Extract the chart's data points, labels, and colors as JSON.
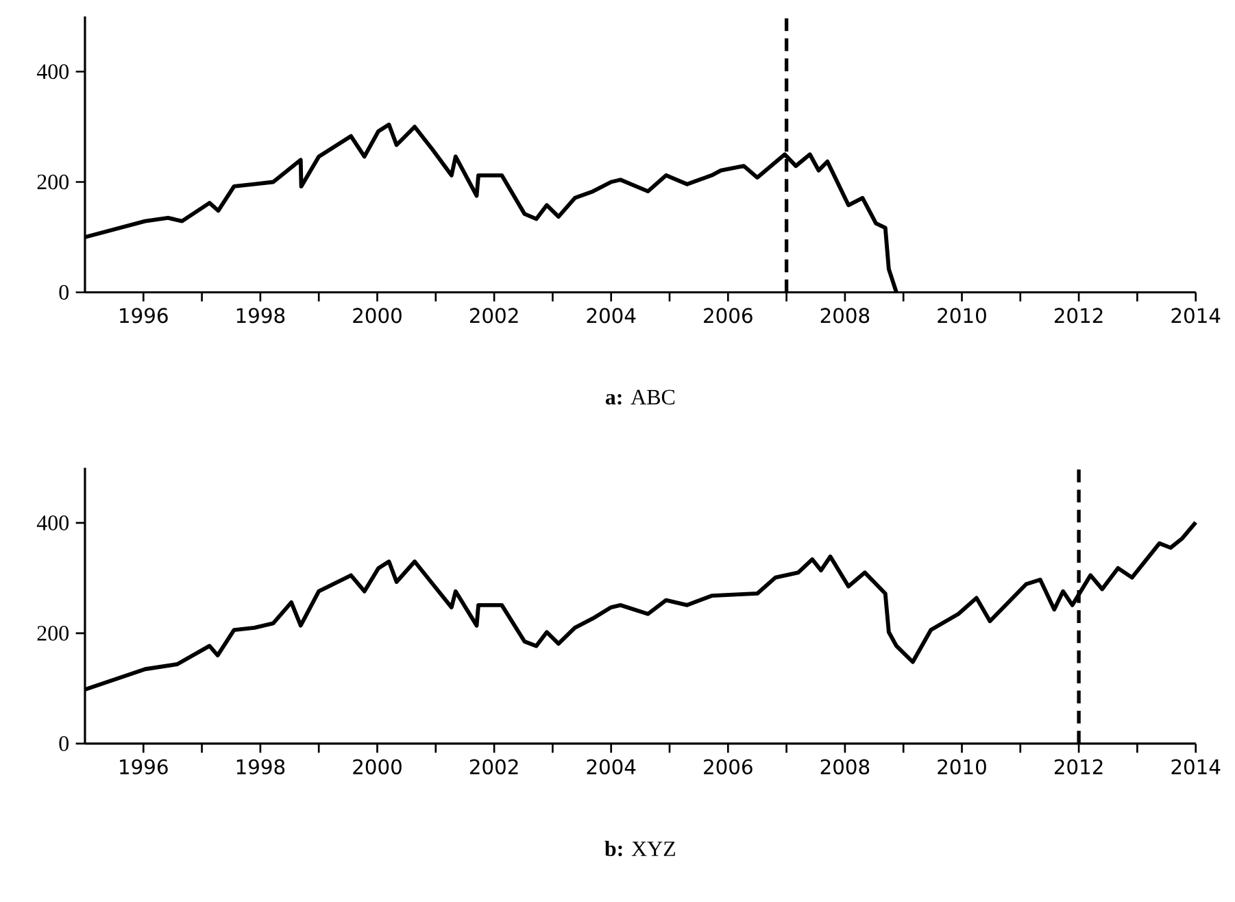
{
  "chart_data": [
    {
      "type": "line",
      "title": "**a:** ABC",
      "color": "#000000",
      "x": [
        1995,
        1996.03,
        1996.42,
        1996.66,
        1997.13,
        1997.28,
        1997.55,
        1997.9,
        1998.22,
        1998.69,
        1998.7,
        1999,
        1999.55,
        1999.78,
        2000.02,
        2000.2,
        2000.33,
        2000.64,
        2000.95,
        2001.27,
        2001.34,
        2001.7,
        2001.73,
        2002.13,
        2002.52,
        2002.72,
        2002.9,
        2003.1,
        2003.38,
        2003.69,
        2004,
        2004.16,
        2004.63,
        2004.94,
        2005.3,
        2005.72,
        2005.88,
        2006.27,
        2006.5,
        2006.97,
        2007.16,
        2007.4,
        2007.55,
        2007.7,
        2008.06,
        2008.3,
        2008.53,
        2008.69,
        2008.75,
        2008.88
      ],
      "values": [
        100,
        129,
        135,
        129,
        162,
        148,
        192,
        196,
        200,
        240,
        192,
        246,
        283,
        246,
        292,
        304,
        267,
        300,
        258,
        212,
        246,
        175,
        212,
        212,
        142,
        133,
        158,
        137,
        171,
        183,
        200,
        204,
        183,
        212,
        196,
        212,
        221,
        229,
        208,
        250,
        229,
        250,
        221,
        237,
        158,
        171,
        125,
        117,
        42,
        0
      ],
      "xlim": [
        1995,
        2014
      ],
      "ylim": [
        0,
        500
      ],
      "yticks": [
        0,
        200,
        400
      ],
      "xticks": [
        1996,
        {
          "value": 1997,
          "label": null
        },
        1998,
        {
          "value": 1999,
          "label": null
        },
        2000,
        {
          "value": 2001,
          "label": null
        },
        2002,
        {
          "value": 2003,
          "label": null
        },
        2004,
        {
          "value": 2005,
          "label": null
        },
        2006,
        {
          "value": 2007,
          "label": null
        },
        2008,
        {
          "value": 2009,
          "label": null
        },
        2010,
        {
          "value": 2011,
          "label": null
        },
        2012,
        {
          "value": 2013,
          "label": null
        },
        2014
      ],
      "ref_lines": [
        {
          "axis": "x",
          "value": 2007,
          "color": "#000000",
          "line_style": "dashed"
        }
      ]
    },
    {
      "type": "line",
      "title": "**b:** XYZ",
      "color": "#000000",
      "x": [
        1995,
        1996.03,
        1996.58,
        1997.13,
        1997.27,
        1997.55,
        1997.9,
        1998.22,
        1998.53,
        1998.69,
        1999,
        1999.55,
        1999.78,
        2000.02,
        2000.2,
        2000.33,
        2000.64,
        2000.95,
        2001.27,
        2001.34,
        2001.7,
        2001.73,
        2002.13,
        2002.52,
        2002.72,
        2002.9,
        2003.1,
        2003.38,
        2003.69,
        2004,
        2004.16,
        2004.63,
        2004.94,
        2005.3,
        2005.72,
        2006.5,
        2006.81,
        2007.2,
        2007.44,
        2007.59,
        2007.75,
        2008.06,
        2008.34,
        2008.69,
        2008.75,
        2008.88,
        2009.16,
        2009.47,
        2009.94,
        2010.25,
        2010.48,
        2011.1,
        2011.34,
        2011.58,
        2011.73,
        2011.89,
        2012.2,
        2012.4,
        2012.67,
        2012.91,
        2013.38,
        2013.57,
        2013.77,
        2014
      ],
      "values": [
        98,
        135,
        144,
        177,
        160,
        206,
        210,
        218,
        256,
        214,
        276,
        305,
        276,
        318,
        330,
        293,
        330,
        289,
        247,
        276,
        214,
        251,
        251,
        185,
        177,
        202,
        181,
        210,
        227,
        247,
        251,
        235,
        260,
        251,
        268,
        272,
        301,
        310,
        334,
        314,
        339,
        285,
        310,
        272,
        202,
        177,
        148,
        206,
        235,
        264,
        222,
        289,
        297,
        243,
        276,
        251,
        305,
        280,
        318,
        301,
        363,
        355,
        372,
        401
      ],
      "xlim": [
        1995,
        2014
      ],
      "ylim": [
        0,
        500
      ],
      "yticks": [
        0,
        200,
        400
      ],
      "xticks": [
        1996,
        {
          "value": 1997,
          "label": null
        },
        1998,
        {
          "value": 1999,
          "label": null
        },
        2000,
        {
          "value": 2001,
          "label": null
        },
        2002,
        {
          "value": 2003,
          "label": null
        },
        2004,
        {
          "value": 2005,
          "label": null
        },
        2006,
        {
          "value": 2007,
          "label": null
        },
        2008,
        {
          "value": 2009,
          "label": null
        },
        2010,
        {
          "value": 2011,
          "label": null
        },
        2012,
        {
          "value": 2013,
          "label": null
        },
        2014
      ],
      "ref_lines": [
        {
          "axis": "x",
          "value": 2012,
          "color": "#000000",
          "line_style": "dashed"
        }
      ]
    }
  ]
}
